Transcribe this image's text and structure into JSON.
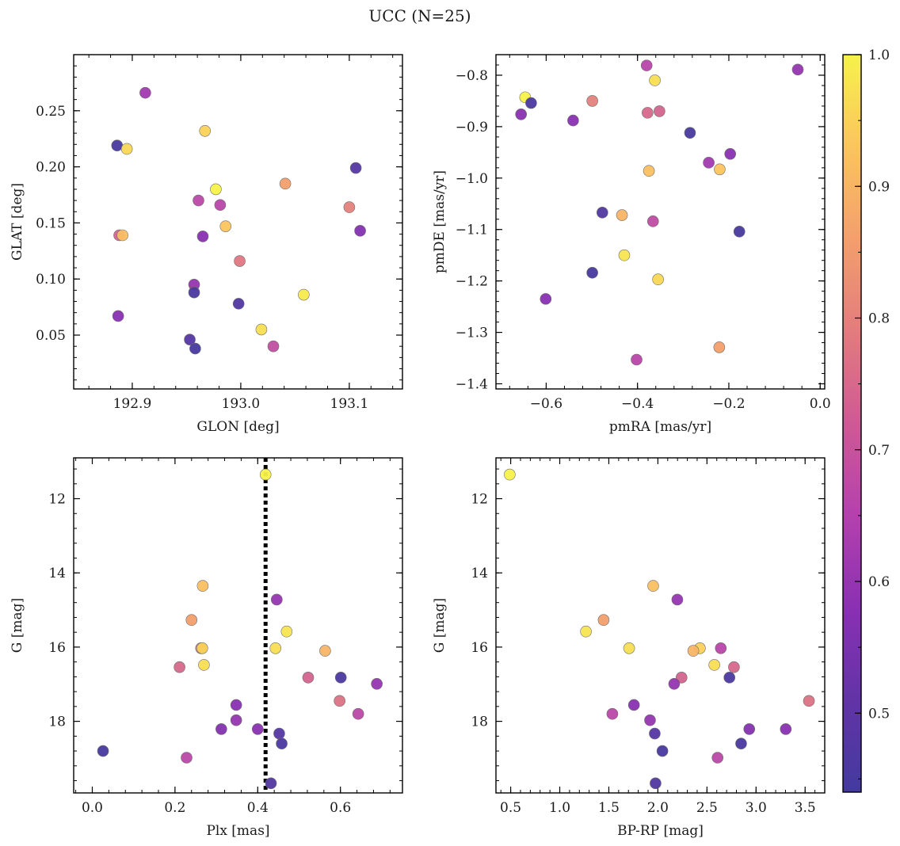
{
  "figure": {
    "title": "UCC (N=25)"
  },
  "colorbar": {
    "min": 0.44,
    "max": 1.0,
    "ticks": [
      "0.5",
      "0.6",
      "0.7",
      "0.8",
      "0.9",
      "1.0"
    ],
    "tick_values": [
      0.5,
      0.6,
      0.7,
      0.8,
      0.9,
      1.0
    ],
    "colormap": "plasma-truncated",
    "colors": [
      "#433a9e",
      "#6234a6",
      "#8a30b2",
      "#b441ad",
      "#cd5a95",
      "#e27c7e",
      "#f39f6c",
      "#fbc45f",
      "#f6f24a"
    ]
  },
  "chart_data": [
    {
      "type": "scatter",
      "xlabel": "GLON [deg]",
      "ylabel": "GLAT [deg]",
      "xlim": [
        192.846,
        193.149
      ],
      "ylim": [
        0.002,
        0.3
      ],
      "xticks": [
        {
          "v": 192.9,
          "label": "192.9"
        },
        {
          "v": 193.0,
          "label": "193.0"
        },
        {
          "v": 193.1,
          "label": "193.1"
        }
      ],
      "yticks": [
        {
          "v": 0.05,
          "label": "0.05"
        },
        {
          "v": 0.1,
          "label": "0.10"
        },
        {
          "v": 0.15,
          "label": "0.15"
        },
        {
          "v": 0.2,
          "label": "0.20"
        },
        {
          "v": 0.25,
          "label": "0.25"
        }
      ],
      "points": [
        {
          "x": 192.886,
          "y": 0.219,
          "c": 0.45
        },
        {
          "x": 192.912,
          "y": 0.266,
          "c": 0.62
        },
        {
          "x": 192.895,
          "y": 0.216,
          "c": 0.96
        },
        {
          "x": 192.967,
          "y": 0.232,
          "c": 0.95
        },
        {
          "x": 192.961,
          "y": 0.17,
          "c": 0.67
        },
        {
          "x": 192.977,
          "y": 0.18,
          "c": 1.0
        },
        {
          "x": 192.981,
          "y": 0.166,
          "c": 0.66
        },
        {
          "x": 192.888,
          "y": 0.139,
          "c": 0.74
        },
        {
          "x": 192.891,
          "y": 0.139,
          "c": 0.92
        },
        {
          "x": 192.965,
          "y": 0.138,
          "c": 0.58
        },
        {
          "x": 192.986,
          "y": 0.147,
          "c": 0.93
        },
        {
          "x": 192.999,
          "y": 0.116,
          "c": 0.78
        },
        {
          "x": 192.957,
          "y": 0.095,
          "c": 0.6
        },
        {
          "x": 192.957,
          "y": 0.088,
          "c": 0.46
        },
        {
          "x": 192.998,
          "y": 0.078,
          "c": 0.47
        },
        {
          "x": 192.887,
          "y": 0.067,
          "c": 0.58
        },
        {
          "x": 192.953,
          "y": 0.046,
          "c": 0.48
        },
        {
          "x": 192.958,
          "y": 0.038,
          "c": 0.45
        },
        {
          "x": 193.019,
          "y": 0.055,
          "c": 0.97
        },
        {
          "x": 193.03,
          "y": 0.04,
          "c": 0.69
        },
        {
          "x": 193.058,
          "y": 0.086,
          "c": 0.99
        },
        {
          "x": 193.041,
          "y": 0.185,
          "c": 0.86
        },
        {
          "x": 193.106,
          "y": 0.199,
          "c": 0.48
        },
        {
          "x": 193.1,
          "y": 0.164,
          "c": 0.8
        },
        {
          "x": 193.11,
          "y": 0.143,
          "c": 0.57
        }
      ]
    },
    {
      "type": "scatter",
      "xlabel": "pmRA [mas/yr]",
      "ylabel": "pmDE [mas/yr]",
      "xlim": [
        -0.71,
        0.01
      ],
      "ylim": [
        -1.41,
        -0.76
      ],
      "xticks": [
        {
          "v": -0.6,
          "label": "−0.6"
        },
        {
          "v": -0.4,
          "label": "−0.4"
        },
        {
          "v": -0.2,
          "label": "−0.2"
        },
        {
          "v": 0.0,
          "label": "0.0"
        }
      ],
      "yticks": [
        {
          "v": -0.8,
          "label": "−0.8"
        },
        {
          "v": -0.9,
          "label": "−0.9"
        },
        {
          "v": -1.0,
          "label": "−1.0"
        },
        {
          "v": -1.1,
          "label": "−1.1"
        },
        {
          "v": -1.2,
          "label": "−1.2"
        },
        {
          "v": -1.3,
          "label": "−1.3"
        },
        {
          "v": -1.4,
          "label": "−1.4"
        }
      ],
      "points": [
        {
          "x": -0.646,
          "y": -0.843,
          "c": 1.0
        },
        {
          "x": -0.655,
          "y": -0.876,
          "c": 0.58
        },
        {
          "x": -0.633,
          "y": -0.854,
          "c": 0.46
        },
        {
          "x": -0.541,
          "y": -0.888,
          "c": 0.58
        },
        {
          "x": -0.499,
          "y": -0.85,
          "c": 0.8
        },
        {
          "x": -0.38,
          "y": -0.781,
          "c": 0.66
        },
        {
          "x": -0.362,
          "y": -0.81,
          "c": 0.97
        },
        {
          "x": -0.378,
          "y": -0.873,
          "c": 0.75
        },
        {
          "x": -0.352,
          "y": -0.87,
          "c": 0.74
        },
        {
          "x": -0.285,
          "y": -0.912,
          "c": 0.45
        },
        {
          "x": -0.049,
          "y": -0.789,
          "c": 0.6
        },
        {
          "x": -0.244,
          "y": -0.97,
          "c": 0.62
        },
        {
          "x": -0.197,
          "y": -0.953,
          "c": 0.58
        },
        {
          "x": -0.375,
          "y": -0.986,
          "c": 0.92
        },
        {
          "x": -0.22,
          "y": -0.983,
          "c": 0.93
        },
        {
          "x": -0.477,
          "y": -1.067,
          "c": 0.47
        },
        {
          "x": -0.434,
          "y": -1.072,
          "c": 0.9
        },
        {
          "x": -0.366,
          "y": -1.084,
          "c": 0.68
        },
        {
          "x": -0.177,
          "y": -1.104,
          "c": 0.45
        },
        {
          "x": -0.429,
          "y": -1.15,
          "c": 0.98
        },
        {
          "x": -0.499,
          "y": -1.184,
          "c": 0.45
        },
        {
          "x": -0.355,
          "y": -1.197,
          "c": 0.96
        },
        {
          "x": -0.601,
          "y": -1.235,
          "c": 0.58
        },
        {
          "x": -0.221,
          "y": -1.329,
          "c": 0.86
        },
        {
          "x": -0.402,
          "y": -1.353,
          "c": 0.66
        }
      ]
    },
    {
      "type": "scatter",
      "xlabel": "Plx [mas]",
      "ylabel": "G [mag]",
      "xlim": [
        -0.045,
        0.75
      ],
      "ylim": [
        19.93,
        10.9
      ],
      "xticks": [
        {
          "v": 0.0,
          "label": "0.0"
        },
        {
          "v": 0.2,
          "label": "0.2"
        },
        {
          "v": 0.4,
          "label": "0.4"
        },
        {
          "v": 0.6,
          "label": "0.6"
        }
      ],
      "yticks": [
        {
          "v": 12,
          "label": "12"
        },
        {
          "v": 14,
          "label": "14"
        },
        {
          "v": 16,
          "label": "16"
        },
        {
          "v": 18,
          "label": "18"
        }
      ],
      "vline": 0.419,
      "points": [
        {
          "x": 0.419,
          "y": 11.35,
          "c": 1.0
        },
        {
          "x": 0.267,
          "y": 14.35,
          "c": 0.92
        },
        {
          "x": 0.446,
          "y": 14.72,
          "c": 0.6
        },
        {
          "x": 0.24,
          "y": 15.27,
          "c": 0.86
        },
        {
          "x": 0.47,
          "y": 15.58,
          "c": 0.98
        },
        {
          "x": 0.263,
          "y": 16.03,
          "c": 0.8
        },
        {
          "x": 0.266,
          "y": 16.03,
          "c": 0.95
        },
        {
          "x": 0.443,
          "y": 16.03,
          "c": 0.97
        },
        {
          "x": 0.563,
          "y": 16.1,
          "c": 0.9
        },
        {
          "x": 0.211,
          "y": 16.54,
          "c": 0.75
        },
        {
          "x": 0.27,
          "y": 16.48,
          "c": 0.97
        },
        {
          "x": 0.522,
          "y": 16.82,
          "c": 0.74
        },
        {
          "x": 0.601,
          "y": 16.82,
          "c": 0.46
        },
        {
          "x": 0.688,
          "y": 16.99,
          "c": 0.6
        },
        {
          "x": 0.598,
          "y": 17.45,
          "c": 0.77
        },
        {
          "x": 0.643,
          "y": 17.8,
          "c": 0.67
        },
        {
          "x": 0.348,
          "y": 17.56,
          "c": 0.58
        },
        {
          "x": 0.348,
          "y": 17.97,
          "c": 0.6
        },
        {
          "x": 0.312,
          "y": 18.21,
          "c": 0.57
        },
        {
          "x": 0.4,
          "y": 18.21,
          "c": 0.58
        },
        {
          "x": 0.452,
          "y": 18.33,
          "c": 0.48
        },
        {
          "x": 0.458,
          "y": 18.6,
          "c": 0.46
        },
        {
          "x": 0.026,
          "y": 18.8,
          "c": 0.45
        },
        {
          "x": 0.228,
          "y": 18.98,
          "c": 0.67
        },
        {
          "x": 0.432,
          "y": 19.67,
          "c": 0.47
        }
      ]
    },
    {
      "type": "scatter",
      "xlabel": "BP-RP [mag]",
      "ylabel": "G [mag]",
      "xlim": [
        0.35,
        3.7
      ],
      "ylim": [
        19.93,
        10.9
      ],
      "xticks": [
        {
          "v": 0.5,
          "label": "0.5"
        },
        {
          "v": 1.0,
          "label": "1.0"
        },
        {
          "v": 1.5,
          "label": "1.5"
        },
        {
          "v": 2.0,
          "label": "2.0"
        },
        {
          "v": 2.5,
          "label": "2.5"
        },
        {
          "v": 3.0,
          "label": "3.0"
        },
        {
          "v": 3.5,
          "label": "3.5"
        }
      ],
      "yticks": [
        {
          "v": 12,
          "label": "12"
        },
        {
          "v": 14,
          "label": "14"
        },
        {
          "v": 16,
          "label": "16"
        },
        {
          "v": 18,
          "label": "18"
        }
      ],
      "points": [
        {
          "x": 0.49,
          "y": 11.35,
          "c": 1.0
        },
        {
          "x": 1.952,
          "y": 14.35,
          "c": 0.92
        },
        {
          "x": 2.198,
          "y": 14.72,
          "c": 0.6
        },
        {
          "x": 1.447,
          "y": 15.27,
          "c": 0.86
        },
        {
          "x": 1.267,
          "y": 15.58,
          "c": 0.98
        },
        {
          "x": 1.707,
          "y": 16.03,
          "c": 0.97
        },
        {
          "x": 2.428,
          "y": 16.03,
          "c": 0.95
        },
        {
          "x": 2.641,
          "y": 16.03,
          "c": 0.66
        },
        {
          "x": 2.361,
          "y": 16.1,
          "c": 0.9
        },
        {
          "x": 2.575,
          "y": 16.48,
          "c": 0.97
        },
        {
          "x": 2.775,
          "y": 16.54,
          "c": 0.75
        },
        {
          "x": 2.241,
          "y": 16.82,
          "c": 0.74
        },
        {
          "x": 2.729,
          "y": 16.82,
          "c": 0.46
        },
        {
          "x": 2.166,
          "y": 16.99,
          "c": 0.6
        },
        {
          "x": 3.539,
          "y": 17.45,
          "c": 0.77
        },
        {
          "x": 1.756,
          "y": 17.56,
          "c": 0.58
        },
        {
          "x": 1.536,
          "y": 17.8,
          "c": 0.67
        },
        {
          "x": 1.92,
          "y": 17.97,
          "c": 0.6
        },
        {
          "x": 2.931,
          "y": 18.21,
          "c": 0.57
        },
        {
          "x": 3.303,
          "y": 18.21,
          "c": 0.58
        },
        {
          "x": 1.968,
          "y": 18.33,
          "c": 0.48
        },
        {
          "x": 2.848,
          "y": 18.6,
          "c": 0.46
        },
        {
          "x": 2.046,
          "y": 18.8,
          "c": 0.45
        },
        {
          "x": 2.608,
          "y": 18.98,
          "c": 0.67
        },
        {
          "x": 1.976,
          "y": 19.67,
          "c": 0.47
        }
      ]
    }
  ]
}
